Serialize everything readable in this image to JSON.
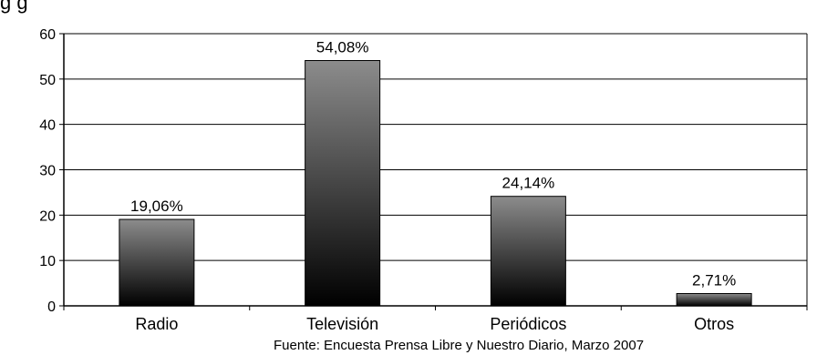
{
  "chart_data": {
    "type": "bar",
    "categories": [
      "Radio",
      "Televisión",
      "Periódicos",
      "Otros"
    ],
    "values": [
      19.06,
      54.08,
      24.14,
      2.71
    ],
    "data_labels": [
      "19,06%",
      "54,08%",
      "24,14%",
      "2,71%"
    ],
    "ylim": [
      0,
      60
    ],
    "yticks": [
      0,
      10,
      20,
      30,
      40,
      50,
      60
    ],
    "grid": true,
    "legend": "none",
    "title": "",
    "xlabel": "",
    "ylabel": ""
  },
  "header_fragment": "g      g",
  "source": "Fuente: Encuesta Prensa Libre y Nuestro Diario, Marzo 2007",
  "colors": {
    "bar_top": "#8c8c8c",
    "bar_bottom": "#000000",
    "grid": "#000000"
  }
}
